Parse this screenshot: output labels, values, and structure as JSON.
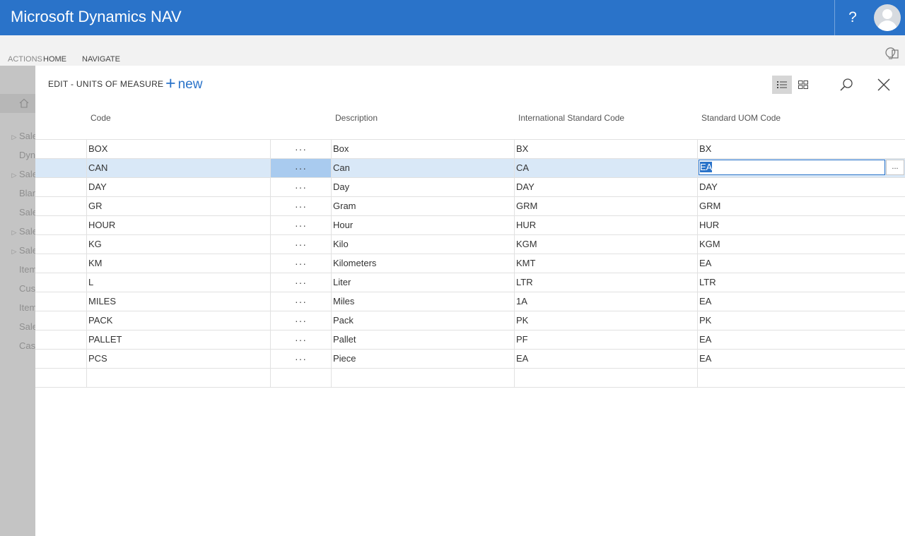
{
  "app": {
    "title": "Microsoft Dynamics NAV",
    "help_label": "?"
  },
  "ribbon": {
    "tabs": [
      "ACTIONS",
      "HOME",
      "NAVIGATE"
    ]
  },
  "background_nav": [
    {
      "label": "Sales",
      "expand": true
    },
    {
      "label": "Dyn",
      "expand": false
    },
    {
      "label": "Sales",
      "expand": true
    },
    {
      "label": "Blan",
      "expand": false
    },
    {
      "label": "Sale",
      "expand": false
    },
    {
      "label": "Sales",
      "expand": true
    },
    {
      "label": "Sales",
      "expand": true
    },
    {
      "label": "Item",
      "expand": false
    },
    {
      "label": "Cust",
      "expand": false
    },
    {
      "label": "Item",
      "expand": false
    },
    {
      "label": "Sale",
      "expand": false
    },
    {
      "label": "Cash",
      "expand": false
    }
  ],
  "dialog": {
    "title": "EDIT - UNITS OF MEASURE",
    "new_label": "new",
    "columns": [
      "Code",
      "Description",
      "International Standard Code",
      "Standard UOM Code"
    ],
    "row_menu_glyph": "···",
    "lookup_glyph": "...",
    "selected_row": 1,
    "rows": [
      {
        "code": "BOX",
        "description": "Box",
        "intl": "BX",
        "std": "BX"
      },
      {
        "code": "CAN",
        "description": "Can",
        "intl": "CA",
        "std": "EA"
      },
      {
        "code": "DAY",
        "description": "Day",
        "intl": "DAY",
        "std": "DAY"
      },
      {
        "code": "GR",
        "description": "Gram",
        "intl": "GRM",
        "std": "GRM"
      },
      {
        "code": "HOUR",
        "description": "Hour",
        "intl": "HUR",
        "std": "HUR"
      },
      {
        "code": "KG",
        "description": "Kilo",
        "intl": "KGM",
        "std": "KGM"
      },
      {
        "code": "KM",
        "description": "Kilometers",
        "intl": "KMT",
        "std": "EA"
      },
      {
        "code": "L",
        "description": "Liter",
        "intl": "LTR",
        "std": "LTR"
      },
      {
        "code": "MILES",
        "description": "Miles",
        "intl": "1A",
        "std": "EA"
      },
      {
        "code": "PACK",
        "description": "Pack",
        "intl": "PK",
        "std": "PK"
      },
      {
        "code": "PALLET",
        "description": "Pallet",
        "intl": "PF",
        "std": "EA"
      },
      {
        "code": "PCS",
        "description": "Piece",
        "intl": "EA",
        "std": "EA"
      }
    ]
  },
  "colors": {
    "accent": "#2a73c9",
    "selection": "#d9e8f7",
    "dimmed": "#c4c4c4"
  }
}
